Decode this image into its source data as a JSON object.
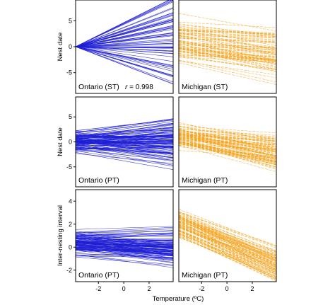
{
  "xlabel": "Temperature (ºC)",
  "colors": {
    "ontario": "#1f1fd6",
    "michigan": "#f5a623",
    "frame": "#000000"
  },
  "chart_data": [
    {
      "type": "line",
      "label": "Ontario (ST)",
      "annotation": "r = 0.998",
      "r_value": "0.998",
      "ylabel": "Nest date",
      "ylim": [
        -9,
        9
      ],
      "yticks": [
        -5,
        0,
        5
      ],
      "xlim": [
        -3.8,
        3.9
      ],
      "xticks": [],
      "color": "#1f1fd6",
      "line_style": "solid",
      "line_count": 70,
      "start_y_range": [
        0,
        0
      ],
      "slope_range": [
        -1.0,
        1.25
      ],
      "endpoint_y_range": [
        -7,
        9.5
      ]
    },
    {
      "type": "line",
      "label": "Michigan (ST)",
      "ylabel": "",
      "ylim": [
        -9,
        9
      ],
      "xlim": [
        -3.8,
        3.9
      ],
      "xticks": [],
      "color": "#f5a623",
      "line_style": "dashed",
      "line_count": 80,
      "start_y_range": [
        -4.5,
        7
      ],
      "slope_range": [
        -0.55,
        -0.05
      ],
      "endpoint_y_range": [
        -4.5,
        5.5
      ]
    },
    {
      "type": "line",
      "label": "Ontario (PT)",
      "ylabel": "Nest date",
      "ylim": [
        -9,
        9
      ],
      "yticks": [
        -5,
        0,
        5
      ],
      "xlim": [
        -3.8,
        3.9
      ],
      "xticks": [],
      "color": "#1f1fd6",
      "line_style": "solid",
      "line_count": 110,
      "start_y_range": [
        -3,
        3.5
      ],
      "slope_range": [
        -0.45,
        0.4
      ],
      "endpoint_y_range": [
        -6.5,
        5.5
      ]
    },
    {
      "type": "line",
      "label": "Michigan (PT)",
      "ylabel": "",
      "ylim": [
        -9,
        9
      ],
      "xlim": [
        -3.8,
        3.9
      ],
      "xticks": [],
      "color": "#f5a623",
      "line_style": "dashed",
      "line_count": 90,
      "start_y_range": [
        -3,
        5
      ],
      "slope_range": [
        -0.75,
        -0.1
      ],
      "endpoint_y_range": [
        -7.5,
        4
      ]
    },
    {
      "type": "line",
      "label": "Ontario (PT)",
      "ylabel": "Inter-nesting interval",
      "ylim": [
        -3,
        5
      ],
      "yticks": [
        -2,
        0,
        2,
        4
      ],
      "xlim": [
        -3.8,
        3.9
      ],
      "xticks": [
        -2,
        0,
        2
      ],
      "color": "#1f1fd6",
      "line_style": "solid",
      "line_count": 110,
      "start_y_range": [
        -1.2,
        2
      ],
      "slope_range": [
        -0.17,
        0.07
      ],
      "endpoint_y_range": [
        -1.2,
        1.3
      ]
    },
    {
      "type": "line",
      "label": "Michigan (PT)",
      "ylabel": "",
      "ylim": [
        -3,
        5
      ],
      "xlim": [
        -3.8,
        3.9
      ],
      "xticks": [
        -2,
        0,
        2
      ],
      "color": "#f5a623",
      "line_style": "dashed",
      "line_count": 90,
      "start_y_range": [
        0.3,
        3.8
      ],
      "slope_range": [
        -0.55,
        -0.38
      ],
      "endpoint_y_range": [
        -2,
        0.3
      ]
    }
  ]
}
